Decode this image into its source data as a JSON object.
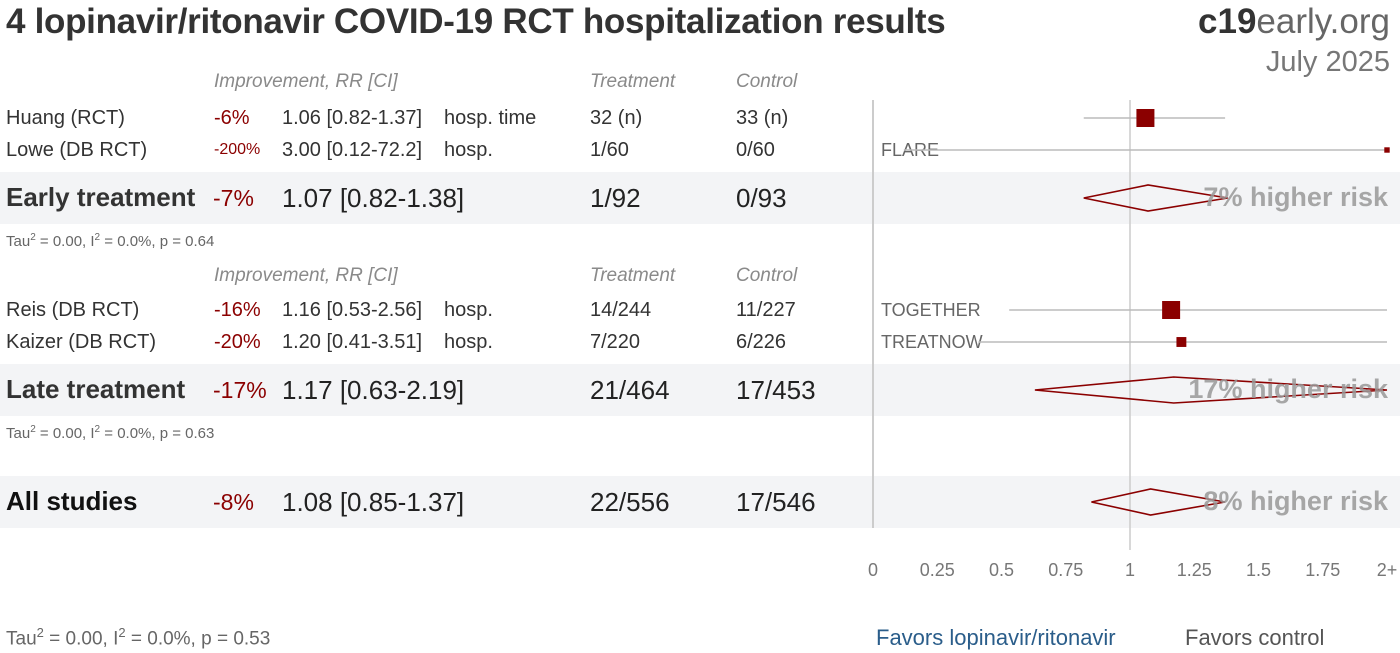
{
  "header": {
    "title": "4 lopinavir/ritonavir COVID-19 RCT hospitalization results",
    "brand_bold": "c19",
    "brand_rest": "early.org",
    "date": "July 2025"
  },
  "columns": {
    "improvement": "Improvement, RR [CI]",
    "treatment": "Treatment",
    "control": "Control"
  },
  "early": {
    "studies": [
      {
        "name": "Huang (RCT)",
        "pct": "-6%",
        "rr_text": "1.06 [0.82-1.37]",
        "outcome": "hosp. time",
        "treatment": "32 (n)",
        "control": "33 (n)",
        "trial": ""
      },
      {
        "name": "Lowe (DB RCT)",
        "pct": "-200%",
        "rr_text": "3.00 [0.12-72.2]",
        "outcome": "hosp.",
        "treatment": "1/60",
        "control": "0/60",
        "trial": "FLARE"
      }
    ],
    "summary": {
      "label": "Early treatment",
      "pct": "-7%",
      "rr_text": "1.07 [0.82-1.38]",
      "treatment": "1/92",
      "control": "0/93",
      "risk": "7% higher risk"
    },
    "tau": {
      "pre": "Tau",
      "sup": "2",
      "mid": " = 0.00, I",
      "sup2": "2",
      "post": " = 0.0%, p = 0.64"
    }
  },
  "late": {
    "studies": [
      {
        "name": "Reis (DB RCT)",
        "pct": "-16%",
        "rr_text": "1.16 [0.53-2.56]",
        "outcome": "hosp.",
        "treatment": "14/244",
        "control": "11/227",
        "trial": "TOGETHER"
      },
      {
        "name": "Kaizer (DB RCT)",
        "pct": "-20%",
        "rr_text": "1.20 [0.41-3.51]",
        "outcome": "hosp.",
        "treatment": "7/220",
        "control": "6/226",
        "trial": "TREATNOW"
      }
    ],
    "summary": {
      "label": "Late treatment",
      "pct": "-17%",
      "rr_text": "1.17 [0.63-2.19]",
      "treatment": "21/464",
      "control": "17/453",
      "risk": "17% higher risk"
    },
    "tau": {
      "pre": "Tau",
      "sup": "2",
      "mid": " = 0.00, I",
      "sup2": "2",
      "post": " = 0.0%, p = 0.63"
    }
  },
  "all": {
    "summary": {
      "label": "All studies",
      "pct": "-8%",
      "rr_text": "1.08 [0.85-1.37]",
      "treatment": "22/556",
      "control": "17/546",
      "risk": "8% higher risk"
    },
    "tau": {
      "pre": "Tau",
      "sup": "2",
      "mid": " = 0.00, I",
      "sup2": "2",
      "post": " = 0.0%, p = 0.53"
    }
  },
  "footer": {
    "favors_left": "Favors lopinavir/ritonavir",
    "favors_right": "Favors control"
  },
  "colors": {
    "point": "#8b0000",
    "ci_line": "#bbbbbb",
    "axis": "#cccccc",
    "favors_left": "#2a5d8a"
  },
  "chart_data": {
    "type": "forest",
    "axis_ticks": [
      "0",
      "0.25",
      "0.5",
      "0.75",
      "1",
      "1.25",
      "1.5",
      "1.75",
      "2+"
    ],
    "xlim": [
      0,
      2
    ],
    "reference": 1,
    "rows": [
      {
        "name": "Huang (RCT)",
        "rr": 1.06,
        "lo": 0.82,
        "hi": 1.37,
        "kind": "study",
        "weight": 1.0
      },
      {
        "name": "Lowe (DB RCT)",
        "rr": 3.0,
        "lo": 0.12,
        "hi": 72.2,
        "kind": "study",
        "weight": 0.3
      },
      {
        "name": "Early treatment",
        "rr": 1.07,
        "lo": 0.82,
        "hi": 1.38,
        "kind": "summary"
      },
      {
        "name": "Reis (DB RCT)",
        "rr": 1.16,
        "lo": 0.53,
        "hi": 2.56,
        "kind": "study",
        "weight": 1.0
      },
      {
        "name": "Kaizer (DB RCT)",
        "rr": 1.2,
        "lo": 0.41,
        "hi": 3.51,
        "kind": "study",
        "weight": 0.55
      },
      {
        "name": "Late treatment",
        "rr": 1.17,
        "lo": 0.63,
        "hi": 2.19,
        "kind": "summary"
      },
      {
        "name": "All studies",
        "rr": 1.08,
        "lo": 0.85,
        "hi": 1.37,
        "kind": "summary"
      }
    ]
  }
}
